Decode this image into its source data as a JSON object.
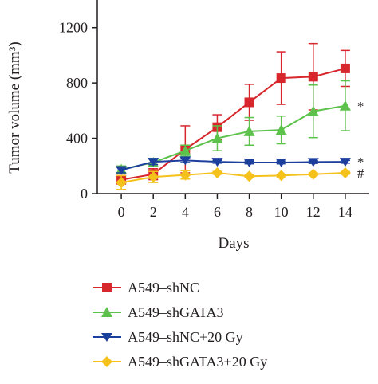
{
  "chart_data": {
    "type": "line",
    "xlabel": "Days",
    "ylabel": "Tumor volume (mm³)",
    "x": [
      0,
      2,
      4,
      6,
      8,
      10,
      12,
      14
    ],
    "x_ticks": [
      "0",
      "2",
      "4",
      "6",
      "8",
      "10",
      "12",
      "14"
    ],
    "y_ticks": [
      "0",
      "400",
      "800",
      "1200"
    ],
    "xlim": [
      -1.5,
      15.5
    ],
    "ylim": [
      0,
      1400
    ],
    "legend_position": "bottom",
    "series": [
      {
        "name": "A549–shNC",
        "color": "#d7262c",
        "marker": "square",
        "values": [
          100,
          140,
          320,
          480,
          660,
          835,
          845,
          905
        ],
        "errors": [
          30,
          40,
          170,
          90,
          130,
          190,
          240,
          130
        ]
      },
      {
        "name": "A549–shGATA3",
        "color": "#5cc24b",
        "marker": "triangle-up",
        "values": [
          175,
          225,
          310,
          400,
          450,
          460,
          595,
          635
        ],
        "errors": [
          25,
          30,
          40,
          90,
          100,
          100,
          190,
          180
        ]
      },
      {
        "name": "A549–shNC+20 Gy",
        "color": "#1c3f9e",
        "marker": "triangle-down",
        "values": [
          170,
          230,
          240,
          230,
          225,
          225,
          228,
          230
        ],
        "errors": [
          20,
          20,
          15,
          10,
          10,
          10,
          10,
          10
        ]
      },
      {
        "name": "A549–shGATA3+20 Gy",
        "color": "#f5c21c",
        "marker": "diamond",
        "values": [
          80,
          120,
          135,
          150,
          125,
          130,
          140,
          150
        ],
        "errors": [
          50,
          40,
          30,
          10,
          10,
          10,
          10,
          10
        ]
      }
    ],
    "annotations": [
      {
        "text": "*",
        "series": 1
      },
      {
        "text": "*",
        "series": 2
      },
      {
        "text": "#",
        "series": 3
      }
    ]
  }
}
